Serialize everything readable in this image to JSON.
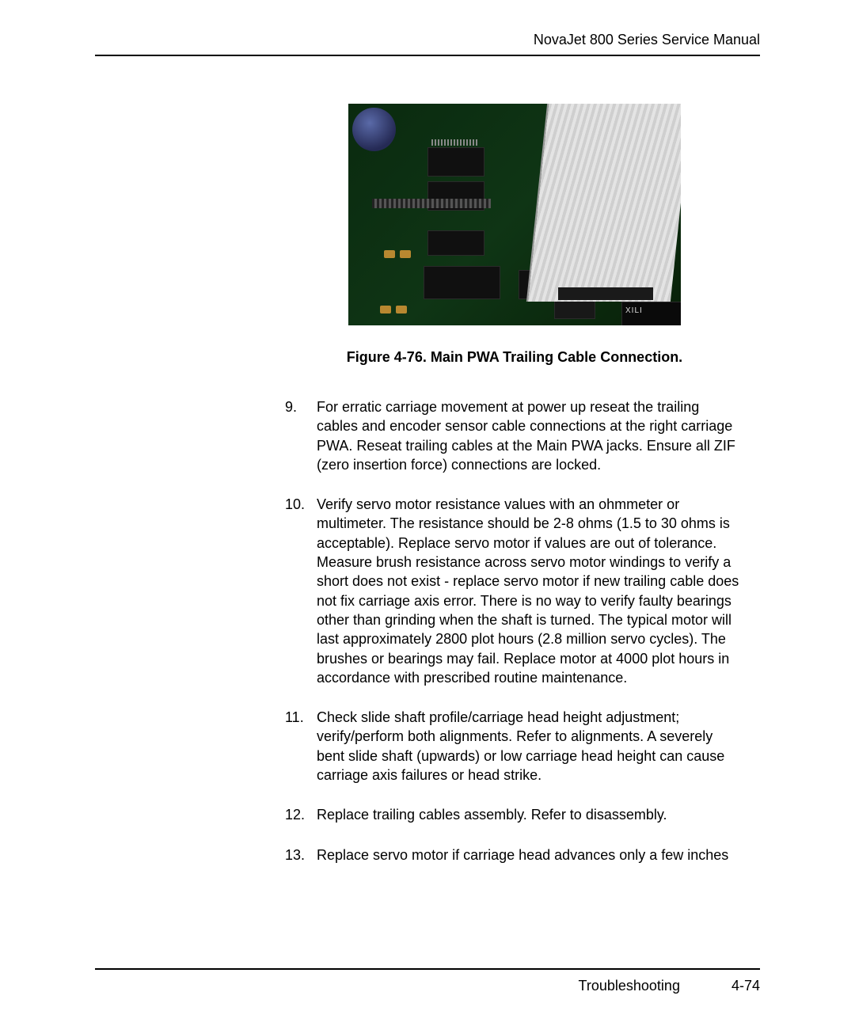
{
  "header": {
    "title": "NovaJet 800 Series Service Manual"
  },
  "figure": {
    "caption": "Figure 4-76.  Main PWA Trailing Cable Connection.",
    "chip_label": "XILI"
  },
  "steps": {
    "s9": "For erratic carriage movement at power up reseat the trailing cables and encoder sensor cable connections at the right carriage PWA.  Reseat trailing cables at the Main PWA jacks.  Ensure all ZIF (zero insertion force) connections are locked.",
    "s10": "Verify servo motor resistance values with an ohmmeter or multimeter.  The resistance should be 2-8 ohms (1.5 to 30 ohms is acceptable).  Replace servo motor if values are out of tolerance.  Measure brush resistance across servo motor windings to verify a short does not exist - replace servo motor if new trailing cable does not fix carriage axis error.  There is no way to verify faulty bearings other than grinding when the shaft is turned.  The typical motor will last approximately 2800 plot hours (2.8 million servo cycles).  The brushes or bearings may fail.  Replace motor at 4000 plot hours in accordance with prescribed routine maintenance.",
    "s11": "Check slide shaft profile/carriage head height adjustment; verify/perform both alignments.  Refer to alignments.  A severely bent slide shaft (upwards) or low carriage head height can cause carriage axis failures or head strike.",
    "s12": "Replace trailing cables assembly.  Refer to disassembly.",
    "s13": "Replace servo motor if carriage head advances only a few inches"
  },
  "footer": {
    "section": "Troubleshooting",
    "page": "4-74"
  }
}
